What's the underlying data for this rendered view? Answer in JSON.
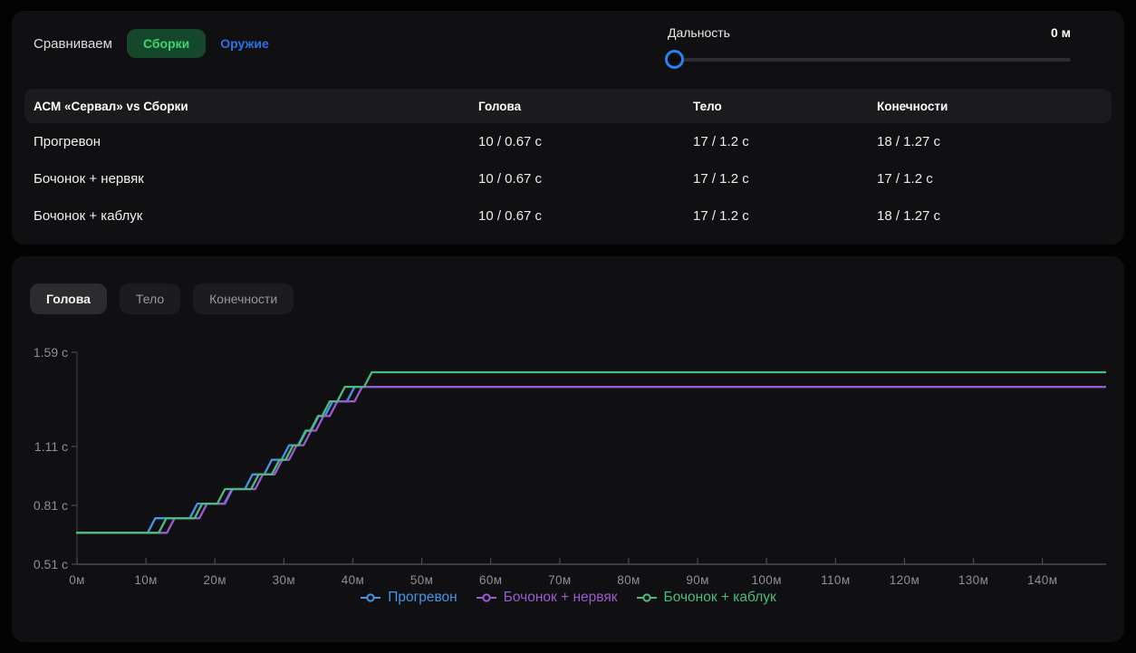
{
  "compare_bar": {
    "label": "Сравниваем",
    "builds_tab": "Сборки",
    "weapons_tab": "Оружие",
    "accent_green_bg": "#15472b",
    "accent_green_text": "#3fd473",
    "accent_blue_text": "#2d72ea"
  },
  "range_slider": {
    "label": "Дальность",
    "value": "0 м",
    "current": 0,
    "thumb_color": "#2b80f5"
  },
  "table": {
    "title": "АСМ «Сервал» vs Сборки",
    "columns": [
      "Голова",
      "Тело",
      "Конечности"
    ],
    "rows": [
      {
        "name": "Прогревон",
        "values": [
          "10 / 0.67 с",
          "17 / 1.2 с",
          "18 / 1.27 с"
        ]
      },
      {
        "name": "Бочонок + нервяк",
        "values": [
          "10 / 0.67 с",
          "17 / 1.2 с",
          "17 / 1.2 с"
        ]
      },
      {
        "name": "Бочонок + каблук",
        "values": [
          "10 / 0.67 с",
          "17 / 1.2 с",
          "18 / 1.27 с"
        ]
      }
    ]
  },
  "chart_tabs": [
    {
      "label": "Голова",
      "active": true
    },
    {
      "label": "Тело",
      "active": false
    },
    {
      "label": "Конечности",
      "active": false
    }
  ],
  "chart_data": {
    "type": "line",
    "style": "step",
    "x_unit": "м",
    "y_unit": "с",
    "x_range": [
      0,
      149.2
    ],
    "y_range": [
      0.51,
      1.59
    ],
    "grid": false,
    "legend_position": "bottom",
    "y_ticks": [
      {
        "label": "1.59 с",
        "value": 1.59
      },
      {
        "label": "1.11 с",
        "value": 1.11
      },
      {
        "label": "0.81 с",
        "value": 0.81
      },
      {
        "label": "0.51 с",
        "value": 0.51
      }
    ],
    "x_ticks": [
      {
        "label": "0м",
        "value": 0
      },
      {
        "label": "10м",
        "value": 10
      },
      {
        "label": "20м",
        "value": 20
      },
      {
        "label": "30м",
        "value": 30
      },
      {
        "label": "40м",
        "value": 40
      },
      {
        "label": "50м",
        "value": 50
      },
      {
        "label": "60м",
        "value": 60
      },
      {
        "label": "70м",
        "value": 70
      },
      {
        "label": "80м",
        "value": 80
      },
      {
        "label": "90м",
        "value": 90
      },
      {
        "label": "100м",
        "value": 100
      },
      {
        "label": "110м",
        "value": 110
      },
      {
        "label": "120м",
        "value": 120
      },
      {
        "label": "130м",
        "value": 130
      },
      {
        "label": "140м",
        "value": 140
      }
    ],
    "series": [
      {
        "name": "Прогревон",
        "color": "#4795e6",
        "start_value": 0.67,
        "end_value": 1.41,
        "step_height": 0.0744,
        "step_positions_m": [
          10.8,
          16.9,
          22.0,
          24.9,
          27.7,
          30.2,
          32.6,
          34.5,
          36.5,
          39.7
        ]
      },
      {
        "name": "Бочонок + нервяк",
        "color": "#9a5ad0",
        "start_value": 0.67,
        "end_value": 1.41,
        "step_height": 0.0744,
        "step_positions_m": [
          13.6,
          18.3,
          21.9,
          26.4,
          29.2,
          31.3,
          33.4,
          35.2,
          37.2,
          40.8
        ]
      },
      {
        "name": "Бочонок + каблук",
        "color": "#4cba7e",
        "start_value": 0.67,
        "end_value": 1.49,
        "step_height": 0.0744,
        "step_positions_m": [
          12.4,
          17.6,
          20.9,
          25.8,
          28.8,
          30.8,
          32.7,
          34.4,
          36.1,
          38.3,
          42.2
        ]
      }
    ]
  }
}
